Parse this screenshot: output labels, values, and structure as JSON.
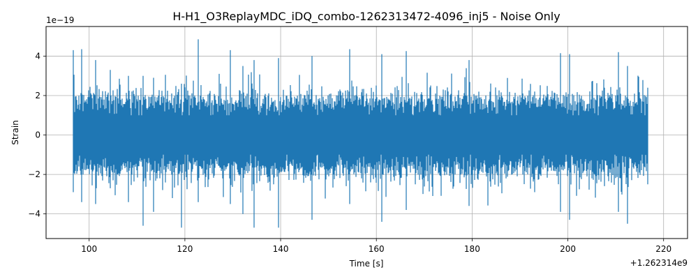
{
  "chart_data": {
    "type": "line",
    "title": "H-H1_O3ReplayMDC_iDQ_combo-1262313472-4096_inj5 - Noise Only",
    "xlabel": "Time [s]",
    "ylabel": "Strain",
    "x_offset_label": "+1.262314e9",
    "y_scale_label": "1e−19",
    "xlim": [
      91,
      225
    ],
    "ylim": [
      -5.25,
      5.5
    ],
    "x_ticks": [
      100,
      120,
      140,
      160,
      180,
      200,
      220
    ],
    "x_tick_labels": [
      "100",
      "120",
      "140",
      "160",
      "180",
      "200",
      "220"
    ],
    "y_ticks": [
      -4,
      -2,
      0,
      2,
      4
    ],
    "y_tick_labels": [
      "−4",
      "−2",
      "0",
      "2",
      "4"
    ],
    "grid": true,
    "series": [
      {
        "color": "#1f77b4",
        "x_range": [
          96.7,
          216.7
        ],
        "envelope_points": [
          {
            "x": 96.7,
            "ymax": 4.3,
            "ymin": -2.9
          },
          {
            "x": 98.5,
            "ymax": 4.35,
            "ymin": -3.4
          },
          {
            "x": 101.4,
            "ymax": 3.8,
            "ymin": -3.5
          },
          {
            "x": 104.4,
            "ymax": 3.3,
            "ymin": -2.7
          },
          {
            "x": 108.2,
            "ymax": 3.0,
            "ymin": -3.4
          },
          {
            "x": 111.2,
            "ymax": 3.0,
            "ymin": -4.6
          },
          {
            "x": 113.5,
            "ymax": 2.9,
            "ymin": -3.9
          },
          {
            "x": 119.3,
            "ymax": 2.6,
            "ymin": -4.7
          },
          {
            "x": 122.8,
            "ymax": 4.85,
            "ymin": -3.4
          },
          {
            "x": 129.5,
            "ymax": 4.3,
            "ymin": -3.5
          },
          {
            "x": 132.1,
            "ymax": 3.5,
            "ymin": -4.0
          },
          {
            "x": 134.5,
            "ymax": 3.8,
            "ymin": -4.7
          },
          {
            "x": 139.5,
            "ymax": 3.9,
            "ymin": -4.7
          },
          {
            "x": 146.5,
            "ymax": 4.0,
            "ymin": -4.3
          },
          {
            "x": 154.5,
            "ymax": 4.35,
            "ymin": -3.5
          },
          {
            "x": 161.2,
            "ymax": 4.1,
            "ymin": -4.4
          },
          {
            "x": 166.2,
            "ymax": 4.25,
            "ymin": -3.8
          },
          {
            "x": 179.3,
            "ymax": 3.8,
            "ymin": -3.6
          },
          {
            "x": 198.4,
            "ymax": 4.15,
            "ymin": -3.9
          },
          {
            "x": 200.4,
            "ymax": 4.1,
            "ymin": -4.3
          },
          {
            "x": 210.5,
            "ymax": 4.2,
            "ymin": -3.9
          },
          {
            "x": 212.5,
            "ymax": 3.5,
            "ymin": -4.5
          },
          {
            "x": 216.7,
            "ymax": 2.4,
            "ymin": -2.5
          }
        ]
      }
    ]
  }
}
